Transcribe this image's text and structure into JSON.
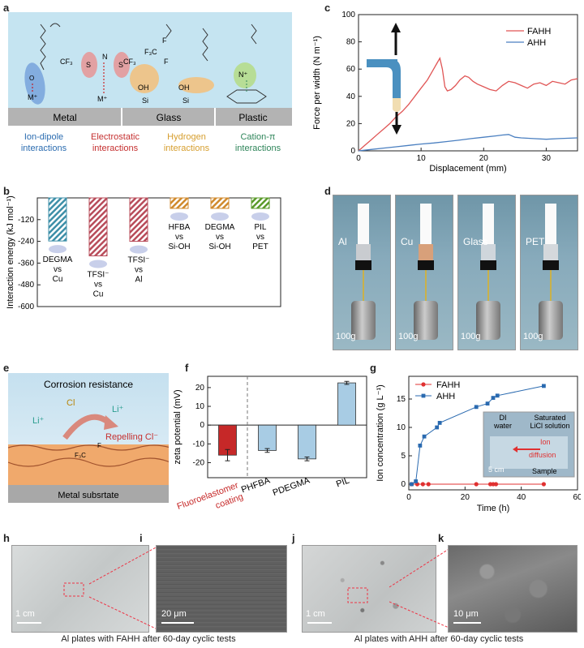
{
  "panel_labels": {
    "a": "a",
    "b": "b",
    "c": "c",
    "d": "d",
    "e": "e",
    "f": "f",
    "g": "g",
    "h": "h",
    "i": "i",
    "j": "j",
    "k": "k"
  },
  "panel_a": {
    "substrates": [
      "Metal",
      "Glass",
      "Plastic"
    ],
    "interactions": [
      {
        "line1": "Ion-dipole",
        "line2": "interactions",
        "color": "#2b6cb0"
      },
      {
        "line1": "Electrostatic",
        "line2": "interactions",
        "color": "#c53030"
      },
      {
        "line1": "Hydrogen",
        "line2": "interactions",
        "color": "#d69e2e"
      },
      {
        "line1": "Cation-π",
        "line2": "interactions",
        "color": "#2f855a"
      }
    ],
    "chem": {
      "cf3": "CF₃",
      "s": "S",
      "n": "N",
      "m": "M⁺",
      "f": "F",
      "f3c": "F₃C",
      "oh": "OH",
      "si": "Si",
      "o": "O",
      "nplus": "N⁺"
    }
  },
  "chart_c": {
    "type": "line",
    "xlabel": "Displacement (mm)",
    "ylabel": "Force per width (N m⁻¹)",
    "xlim": [
      0,
      35
    ],
    "ylim": [
      0,
      100
    ],
    "xticks": [
      0,
      10,
      20,
      30
    ],
    "yticks": [
      0,
      20,
      40,
      60,
      80,
      100
    ],
    "series": [
      {
        "name": "FAHH",
        "color": "#e05555",
        "x": [
          0,
          1,
          2,
          3,
          4,
          5,
          6,
          7,
          8,
          9,
          10,
          11,
          12,
          12.5,
          13,
          13.4,
          13.8,
          14.2,
          14.8,
          15.5,
          16.2,
          17,
          17.6,
          18.3,
          19,
          20,
          21,
          22,
          23,
          24,
          25,
          26,
          27,
          28,
          29,
          30,
          31,
          32,
          33,
          34,
          35
        ],
        "y": [
          0,
          4,
          8,
          12,
          16,
          20,
          25,
          29,
          34,
          40,
          46,
          52,
          60,
          64,
          68,
          60,
          47,
          44,
          45,
          48,
          52,
          55,
          54,
          51,
          49,
          47,
          45,
          44,
          48,
          51,
          50,
          48,
          46,
          49,
          50,
          48,
          51,
          50,
          49,
          52,
          53
        ]
      },
      {
        "name": "AHH",
        "color": "#4a7fc0",
        "x": [
          0,
          2,
          4,
          6,
          8,
          10,
          12,
          14,
          16,
          18,
          20,
          22,
          23,
          24,
          25,
          26,
          28,
          30,
          32,
          35
        ],
        "y": [
          0,
          1,
          2,
          3,
          4,
          5,
          5.8,
          6.8,
          7.8,
          9,
          10,
          11,
          11.6,
          12,
          10,
          9.5,
          9,
          8.5,
          9,
          9.5
        ]
      }
    ]
  },
  "chart_b": {
    "type": "bar",
    "ylabel": "Interaction energy (kJ mol⁻¹)",
    "ylim": [
      -600,
      0
    ],
    "yticks": [
      -120,
      -240,
      -360,
      -480,
      -600
    ],
    "categories": [
      "DEGMA vs Cu",
      "TFSI⁻ vs Cu",
      "TFSI⁻ vs Al",
      "HFBA vs Si-OH",
      "DEGMA vs Si-OH",
      "PIL vs PET"
    ],
    "label_lines": [
      [
        "DEGMA",
        "vs",
        "Cu"
      ],
      [
        "TFSI⁻",
        "vs",
        "Cu"
      ],
      [
        "TFSI⁻",
        "vs",
        "Al"
      ],
      [
        "HFBA",
        "vs",
        "Si-OH"
      ],
      [
        "DEGMA",
        "vs",
        "Si-OH"
      ],
      [
        "PIL",
        "vs",
        "PET"
      ]
    ],
    "values": [
      -238,
      -320,
      -240,
      -58,
      -58,
      -58
    ],
    "colors": [
      "#3d8fa8",
      "#b84c5a",
      "#b84c5a",
      "#d08a2c",
      "#d08a2c",
      "#5a9a2a"
    ]
  },
  "panel_d": {
    "labels": [
      "Al",
      "Cu",
      "Glass",
      "PET"
    ],
    "weight": "100g"
  },
  "panel_e": {
    "title": "Corrosion resistance",
    "cl": "Cl",
    "li": "Li⁺",
    "repel": "Repelling Cl⁻",
    "substrate": "Metal subsrtate"
  },
  "chart_f": {
    "type": "bar",
    "ylabel": "zeta potential (mV)",
    "ylim": [
      -28,
      26
    ],
    "yticks": [
      20,
      10,
      0,
      -10,
      -20
    ],
    "categories": [
      "Fluoroelastomer coating",
      "PHFBA",
      "PDEGMA",
      "PIL"
    ],
    "cat_line1": "Fluoroelastomer",
    "cat_line2": "coating",
    "values": [
      -16,
      -13.5,
      -18,
      22.5
    ],
    "errors": [
      3,
      1,
      1,
      0.8
    ],
    "colors": [
      "#c62828",
      "#a8cce4",
      "#a8cce4",
      "#a8cce4"
    ]
  },
  "chart_g": {
    "type": "line",
    "xlabel": "Time (h)",
    "ylabel": "Ion concentration (g L⁻¹)",
    "xlim": [
      0,
      60
    ],
    "ylim": [
      -1,
      19
    ],
    "xticks": [
      0,
      20,
      40,
      60
    ],
    "yticks": [
      0,
      5,
      10,
      15
    ],
    "series": [
      {
        "name": "FAHH",
        "color": "#e03030",
        "marker": "circle",
        "x": [
          1,
          3,
          5,
          7,
          24,
          29,
          30,
          31,
          48
        ],
        "y": [
          0,
          0,
          0,
          0,
          0,
          0,
          0,
          0,
          0
        ]
      },
      {
        "name": "AHH",
        "color": "#2a6ab0",
        "marker": "square",
        "x": [
          1,
          2.5,
          4,
          5.5,
          10,
          11,
          24,
          28,
          30,
          31.5,
          48
        ],
        "y": [
          0,
          0.5,
          6.8,
          8.4,
          10,
          10.8,
          13.6,
          14.2,
          15.2,
          15.6,
          17.3
        ]
      }
    ],
    "inset": {
      "di": "DI",
      "water": "water",
      "sat": "Saturated",
      "licl": "LiCl solution",
      "ion": "Ion",
      "diffusion": "diffusion",
      "scale": "5 cm",
      "sample": "Sample"
    }
  },
  "panel_hk": {
    "scale_h": "1 cm",
    "scale_i": "20 μm",
    "scale_j": "1 cm",
    "scale_k": "10 μm",
    "caption_left": "Al plates with FAHH after 60-day cyclic tests",
    "caption_right": "Al plates with AHH after 60-day cyclic tests"
  }
}
